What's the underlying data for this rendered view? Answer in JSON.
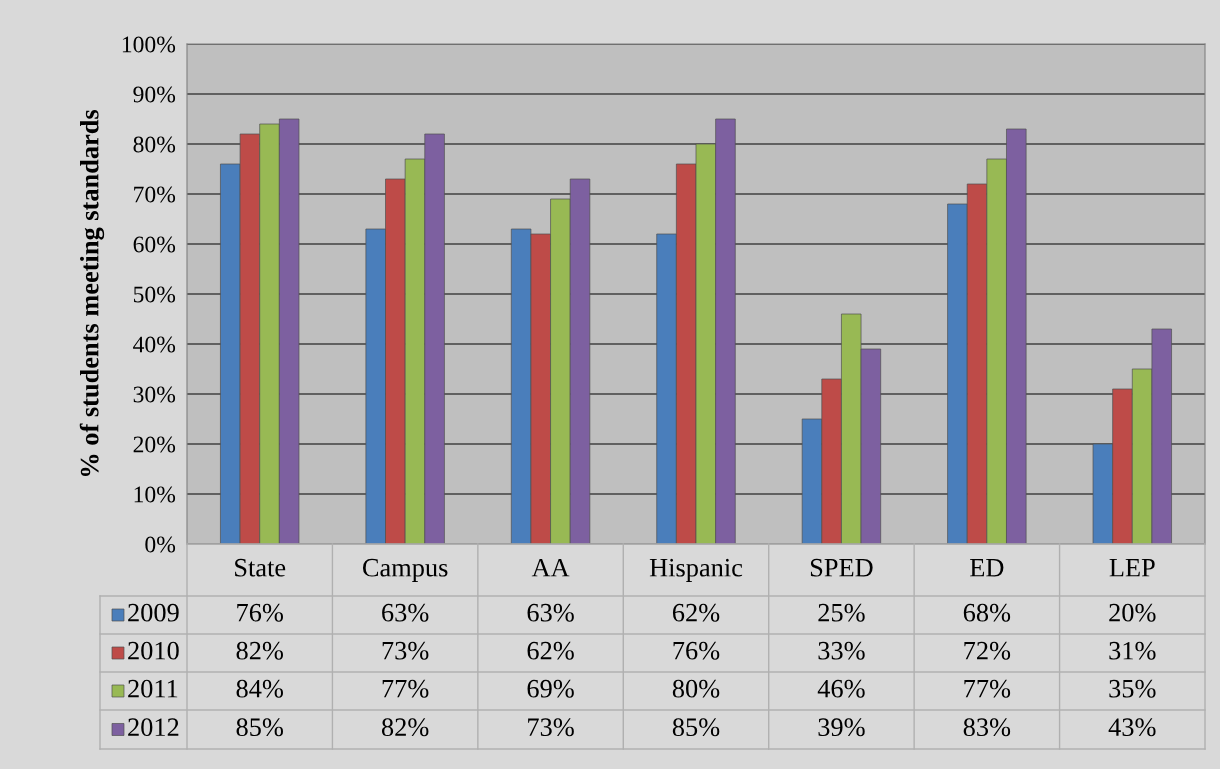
{
  "chart_data": {
    "type": "bar",
    "ylabel": "% of students meeting standards",
    "categories": [
      "State",
      "Campus",
      "AA",
      "Hispanic",
      "SPED",
      "ED",
      "LEP"
    ],
    "series": [
      {
        "name": "2009",
        "color": "#4a7ebb",
        "values": [
          76,
          63,
          63,
          62,
          25,
          68,
          20
        ],
        "value_labels": [
          "76%",
          "63%",
          "63%",
          "62%",
          "25%",
          "68%",
          "20%"
        ]
      },
      {
        "name": "2010",
        "color": "#be4b48",
        "values": [
          82,
          73,
          62,
          76,
          33,
          72,
          31
        ],
        "value_labels": [
          "82%",
          "73%",
          "62%",
          "76%",
          "33%",
          "72%",
          "31%"
        ]
      },
      {
        "name": "2011",
        "color": "#98b954",
        "values": [
          84,
          77,
          69,
          80,
          46,
          77,
          35
        ],
        "value_labels": [
          "84%",
          "77%",
          "69%",
          "80%",
          "46%",
          "77%",
          "35%"
        ]
      },
      {
        "name": "2012",
        "color": "#7d60a0",
        "values": [
          85,
          82,
          73,
          85,
          39,
          83,
          43
        ],
        "value_labels": [
          "85%",
          "82%",
          "73%",
          "85%",
          "39%",
          "83%",
          "43%"
        ]
      }
    ],
    "ylim": [
      0,
      100
    ],
    "yticks": [
      {
        "value": 0,
        "label": "0%"
      },
      {
        "value": 10,
        "label": "10%"
      },
      {
        "value": 20,
        "label": "20%"
      },
      {
        "value": 30,
        "label": "30%"
      },
      {
        "value": 40,
        "label": "40%"
      },
      {
        "value": 50,
        "label": "50%"
      },
      {
        "value": 60,
        "label": "60%"
      },
      {
        "value": 70,
        "label": "70%"
      },
      {
        "value": 80,
        "label": "80%"
      },
      {
        "value": 90,
        "label": "90%"
      },
      {
        "value": 100,
        "label": "100%"
      }
    ],
    "grid": "y",
    "legend": "bottom left"
  }
}
